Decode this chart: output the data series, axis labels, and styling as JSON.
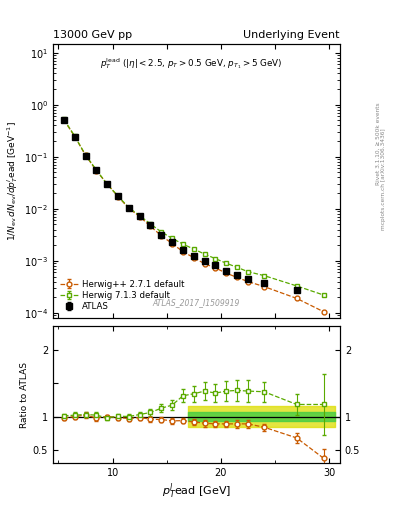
{
  "title_left": "13000 GeV pp",
  "title_right": "Underlying Event",
  "watermark": "ATLAS_2017_I1509919",
  "atlas_x": [
    5.5,
    6.5,
    7.5,
    8.5,
    9.5,
    10.5,
    11.5,
    12.5,
    13.5,
    14.5,
    15.5,
    16.5,
    17.5,
    18.5,
    19.5,
    20.5,
    21.5,
    22.5,
    24.0,
    27.0
  ],
  "atlas_y": [
    0.52,
    0.245,
    0.105,
    0.055,
    0.03,
    0.0175,
    0.0105,
    0.0072,
    0.0048,
    0.0032,
    0.0023,
    0.0016,
    0.00125,
    0.00098,
    0.00082,
    0.00065,
    0.00054,
    0.00045,
    0.00038,
    0.00028
  ],
  "atlas_yerr": [
    0.018,
    0.009,
    0.004,
    0.002,
    0.001,
    0.0006,
    0.0004,
    0.0003,
    0.00015,
    0.0001,
    8e-05,
    6e-05,
    5e-05,
    4e-05,
    3e-05,
    3e-05,
    2e-05,
    2e-05,
    2e-05,
    2e-05
  ],
  "herwig_pp_x": [
    5.5,
    6.5,
    7.5,
    8.5,
    9.5,
    10.5,
    11.5,
    12.5,
    13.5,
    14.5,
    15.5,
    16.5,
    17.5,
    18.5,
    19.5,
    20.5,
    21.5,
    22.5,
    24.0,
    27.0,
    29.5
  ],
  "herwig_pp_y": [
    0.51,
    0.245,
    0.107,
    0.054,
    0.03,
    0.0172,
    0.0102,
    0.0071,
    0.0046,
    0.00305,
    0.00215,
    0.0015,
    0.00115,
    0.00088,
    0.00073,
    0.00058,
    0.00048,
    0.0004,
    0.00032,
    0.00019,
    0.000105
  ],
  "herwig_pp_yerr": [
    0.01,
    0.007,
    0.003,
    0.0015,
    0.0008,
    0.0004,
    0.0003,
    0.0002,
    0.00012,
    8e-05,
    6e-05,
    4e-05,
    3e-05,
    3e-05,
    2e-05,
    2e-05,
    2e-05,
    1e-05,
    1e-05,
    8e-06,
    6e-06
  ],
  "herwig713_x": [
    5.5,
    6.5,
    7.5,
    8.5,
    9.5,
    10.5,
    11.5,
    12.5,
    13.5,
    14.5,
    15.5,
    16.5,
    17.5,
    18.5,
    19.5,
    20.5,
    21.5,
    22.5,
    24.0,
    27.0,
    29.5
  ],
  "herwig713_y": [
    0.525,
    0.25,
    0.108,
    0.056,
    0.0295,
    0.0176,
    0.0105,
    0.0074,
    0.0051,
    0.0036,
    0.0027,
    0.0021,
    0.00168,
    0.00135,
    0.0011,
    0.0009,
    0.00075,
    0.00062,
    0.00052,
    0.00033,
    0.00022
  ],
  "herwig713_yerr": [
    0.01,
    0.007,
    0.003,
    0.0015,
    0.0008,
    0.0004,
    0.0003,
    0.0002,
    0.00012,
    9e-05,
    7e-05,
    5e-05,
    4e-05,
    3e-05,
    3e-05,
    2e-05,
    2e-05,
    2e-05,
    1e-05,
    1e-05,
    1e-05
  ],
  "hpp_ratio_x": [
    5.5,
    6.5,
    7.5,
    8.5,
    9.5,
    10.5,
    11.5,
    12.5,
    13.5,
    14.5,
    15.5,
    16.5,
    17.5,
    18.5,
    19.5,
    20.5,
    21.5,
    22.5,
    24.0,
    27.0,
    29.5
  ],
  "hpp_ratio_y": [
    0.98,
    1.0,
    1.02,
    0.98,
    1.0,
    0.985,
    0.97,
    0.985,
    0.96,
    0.955,
    0.935,
    0.938,
    0.92,
    0.9,
    0.89,
    0.89,
    0.89,
    0.89,
    0.84,
    0.68,
    0.375
  ],
  "hpp_ratio_err": [
    0.03,
    0.04,
    0.04,
    0.04,
    0.03,
    0.03,
    0.04,
    0.035,
    0.04,
    0.04,
    0.04,
    0.04,
    0.04,
    0.05,
    0.05,
    0.05,
    0.06,
    0.06,
    0.05,
    0.07,
    0.14
  ],
  "h713_ratio_x": [
    5.5,
    6.5,
    7.5,
    8.5,
    9.5,
    10.5,
    11.5,
    12.5,
    13.5,
    14.5,
    15.5,
    16.5,
    17.5,
    18.5,
    19.5,
    20.5,
    21.5,
    22.5,
    24.0,
    27.0,
    29.5
  ],
  "h713_ratio_y": [
    1.01,
    1.02,
    1.03,
    1.02,
    0.98,
    1.005,
    1.0,
    1.03,
    1.06,
    1.125,
    1.17,
    1.31,
    1.34,
    1.38,
    1.35,
    1.38,
    1.39,
    1.38,
    1.37,
    1.18,
    1.18
  ],
  "h713_ratio_err": [
    0.03,
    0.04,
    0.04,
    0.04,
    0.035,
    0.035,
    0.04,
    0.04,
    0.05,
    0.06,
    0.07,
    0.1,
    0.12,
    0.13,
    0.14,
    0.15,
    0.16,
    0.16,
    0.15,
    0.15,
    0.45
  ],
  "herwig_pp_color": "#c85a00",
  "herwig713_color": "#5aaa00",
  "band_x_start": 17.0,
  "band_x_end": 30.5,
  "band_green_lo": 0.93,
  "band_green_hi": 1.07,
  "band_yellow_lo": 0.85,
  "band_yellow_hi": 1.15,
  "xlim": [
    4.5,
    31
  ],
  "ylim_main_lo": 8e-05,
  "ylim_main_hi": 15.0,
  "ylim_ratio_lo": 0.3,
  "ylim_ratio_hi": 2.35
}
